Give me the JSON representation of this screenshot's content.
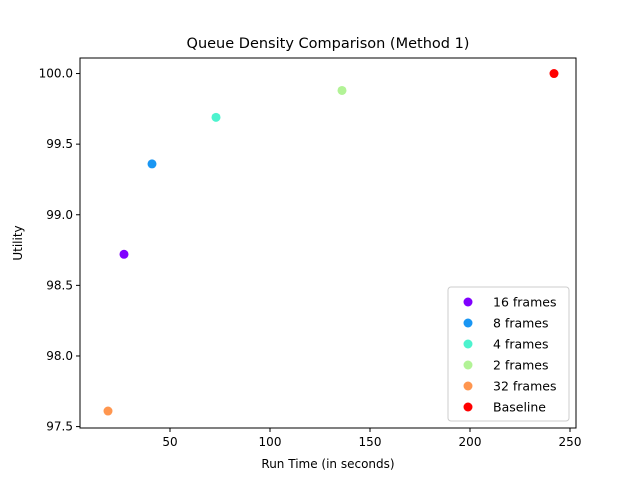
{
  "chart_data": {
    "type": "scatter",
    "title": "Queue Density Comparison (Method 1)",
    "xlabel": "Run Time (in seconds)",
    "ylabel": "Utility",
    "xlim": [
      5,
      253
    ],
    "ylim": [
      97.49,
      100.11
    ],
    "xticks": [
      50,
      100,
      150,
      200,
      250
    ],
    "yticks": [
      97.5,
      98.0,
      98.5,
      99.0,
      99.5,
      100.0
    ],
    "xtick_labels": [
      "50",
      "100",
      "150",
      "200",
      "250"
    ],
    "ytick_labels": [
      "97.5",
      "98.0",
      "98.5",
      "99.0",
      "99.5",
      "100.0"
    ],
    "grid": false,
    "legend_position": "lower-right",
    "series": [
      {
        "name": "16 frames",
        "color": "#8000ff",
        "x": [
          27
        ],
        "y": [
          98.72
        ]
      },
      {
        "name": "8 frames",
        "color": "#1996f3",
        "x": [
          41
        ],
        "y": [
          99.36
        ]
      },
      {
        "name": "4 frames",
        "color": "#4df3ce",
        "x": [
          73
        ],
        "y": [
          99.69
        ]
      },
      {
        "name": "2 frames",
        "color": "#b2f396",
        "x": [
          136
        ],
        "y": [
          99.88
        ]
      },
      {
        "name": "32 frames",
        "color": "#ff964f",
        "x": [
          19
        ],
        "y": [
          97.61
        ]
      },
      {
        "name": "Baseline",
        "color": "#ff0000",
        "x": [
          242
        ],
        "y": [
          100.0
        ]
      }
    ]
  }
}
